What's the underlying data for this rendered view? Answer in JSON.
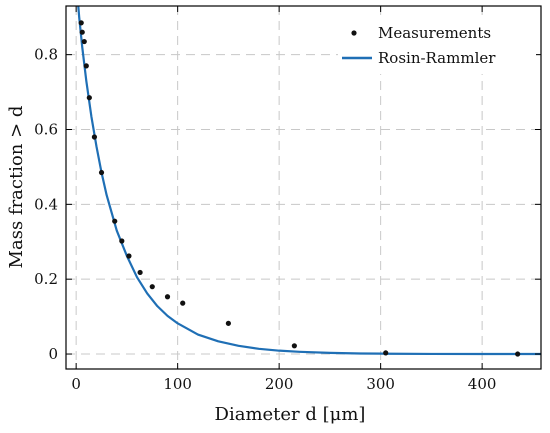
{
  "chart_data": {
    "type": "scatter",
    "title": "",
    "xlabel": "Diameter d [μm]",
    "ylabel": "Mass fraction > d",
    "xlim": [
      -10,
      458
    ],
    "ylim": [
      -0.04,
      0.93
    ],
    "xticks": [
      0,
      100,
      200,
      300,
      400
    ],
    "yticks": [
      0,
      0.2,
      0.4,
      0.6,
      0.8
    ],
    "xtick_labels": [
      "0",
      "100",
      "200",
      "300",
      "400"
    ],
    "ytick_labels": [
      "0",
      "0.2",
      "0.4",
      "0.6",
      "0.8"
    ],
    "grid": true,
    "legend_position": "top-right",
    "series": [
      {
        "name": "Measurements",
        "type": "scatter",
        "color": "#111111",
        "x": [
          5,
          6,
          8,
          10,
          13,
          18,
          25,
          38,
          45,
          52,
          63,
          75,
          90,
          105,
          150,
          215,
          305,
          435
        ],
        "y": [
          0.885,
          0.86,
          0.835,
          0.77,
          0.685,
          0.58,
          0.485,
          0.355,
          0.302,
          0.262,
          0.218,
          0.18,
          0.153,
          0.136,
          0.082,
          0.022,
          0.003,
          0.0
        ]
      },
      {
        "name": "Rosin-Rammler",
        "type": "line",
        "color": "#1f6fb5",
        "x": [
          0,
          3,
          6,
          10,
          15,
          20,
          25,
          30,
          40,
          50,
          60,
          70,
          80,
          90,
          100,
          120,
          140,
          160,
          180,
          200,
          220,
          250,
          280,
          310,
          350,
          400,
          458
        ],
        "y": [
          1.0,
          0.9,
          0.82,
          0.73,
          0.635,
          0.555,
          0.485,
          0.425,
          0.33,
          0.262,
          0.205,
          0.162,
          0.128,
          0.102,
          0.082,
          0.052,
          0.034,
          0.022,
          0.014,
          0.009,
          0.006,
          0.003,
          0.0015,
          0.0008,
          0.0003,
          0.0001,
          0.0
        ]
      }
    ]
  }
}
